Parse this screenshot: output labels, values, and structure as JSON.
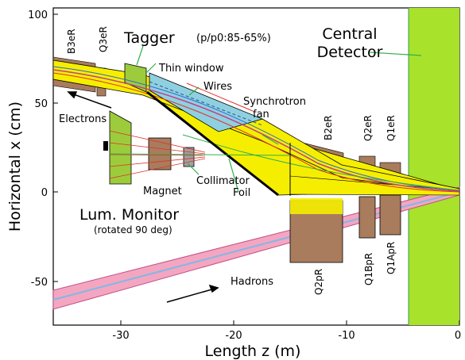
{
  "axes": {
    "xlabel": "Length z (m)",
    "ylabel": "Horizontal x (cm)",
    "x_ticks": [
      "-30",
      "-20",
      "-10",
      "0"
    ],
    "y_ticks": [
      "100",
      "50",
      "0",
      "-50"
    ]
  },
  "labels": {
    "tagger": "Tagger",
    "tagger_range": "(p/p0:85-65%)",
    "central_detector_line1": "Central",
    "central_detector_line2": "Detector",
    "thin_window": "Thin window",
    "wires": "Wires",
    "synchrotron_fan_line1": "Synchrotron",
    "synchrotron_fan_line2": "fan",
    "electrons": "Electrons",
    "magnet": "Magnet",
    "collimator": "Collimator",
    "foil": "Foil",
    "lum_monitor": "Lum. Monitor",
    "lum_monitor_note": "(rotated 90 deg)",
    "hadrons": "Hadrons"
  },
  "magnets": {
    "b3er": "B3eR",
    "q3er": "Q3eR",
    "b2er": "B2eR",
    "q2er": "Q2eR",
    "q1er": "Q1eR",
    "q2pr": "Q2pR",
    "q1bpr": "Q1BpR",
    "q1apr": "Q1ApR"
  },
  "colors": {
    "central_detector": "#a8e22a",
    "electron_beam": "#f5ee00",
    "hadron_beam": "#f4a6c0",
    "magnet_brown": "#a87c5c",
    "tagger_green": "#9ccc3c",
    "window_blue": "#8fd0e0"
  }
}
